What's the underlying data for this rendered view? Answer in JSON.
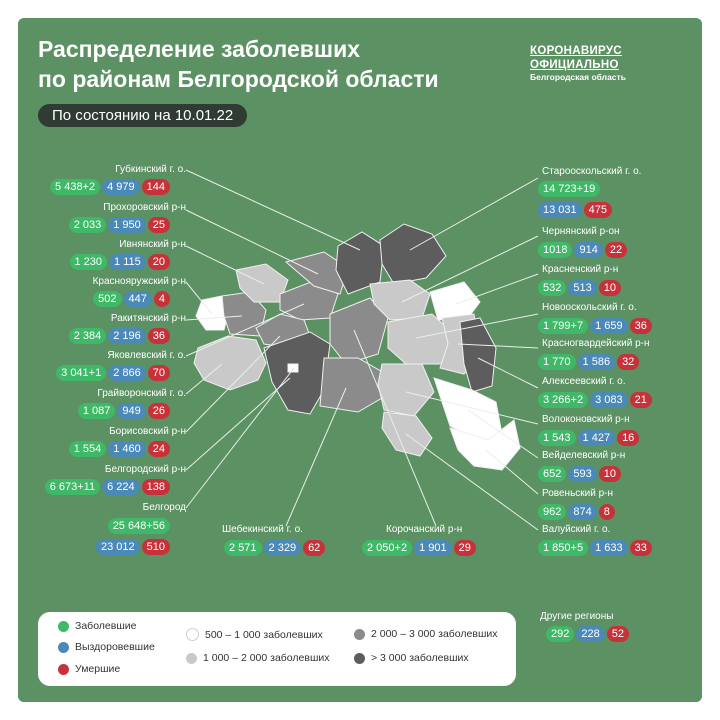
{
  "header": {
    "title_line1": "Распределение заболевших",
    "title_line2": "по районам Белгородской области",
    "date": "По состоянию на 10.01.22",
    "brand_line1": "КОРОНАВИРУС",
    "brand_line2": "ОФИЦИАЛЬНО",
    "brand_line3": "Белгородская область"
  },
  "left_districts": [
    {
      "name": "Губкинский г. о.",
      "sick": "5 438+2",
      "recovered": "4 979",
      "dead": "144"
    },
    {
      "name": "Прохоровский р-н",
      "sick": "2 033",
      "recovered": "1 950",
      "dead": "25"
    },
    {
      "name": "Ивнянский р-н",
      "sick": "1 230",
      "recovered": "1 115",
      "dead": "20"
    },
    {
      "name": "Краснояружский р-н",
      "sick": "502",
      "recovered": "447",
      "dead": "4"
    },
    {
      "name": "Ракитянский р-н",
      "sick": "2 384",
      "recovered": "2 196",
      "dead": "36"
    },
    {
      "name": "Яковлевский г. о.",
      "sick": "3 041+1",
      "recovered": "2 866",
      "dead": "70"
    },
    {
      "name": "Грайворонский г. о.",
      "sick": "1 087",
      "recovered": "949",
      "dead": "26"
    },
    {
      "name": "Борисовский р-н",
      "sick": "1 554",
      "recovered": "1 460",
      "dead": "24"
    },
    {
      "name": "Белгородский р-н",
      "sick": "6 673+11",
      "recovered": "6 224",
      "dead": "138"
    }
  ],
  "belgorod": {
    "name": "Белгород",
    "sick": "25 648+56",
    "recovered": "23 012",
    "dead": "510"
  },
  "bottom_districts": [
    {
      "name": "Шебекинский г. о.",
      "sick": "2 571",
      "recovered": "2 329",
      "dead": "62"
    },
    {
      "name": "Корочанский р-н",
      "sick": "2 050+2",
      "recovered": "1 901",
      "dead": "29"
    }
  ],
  "right_districts": [
    {
      "name": "Старооскольский г. о.",
      "sick": "14 723+19",
      "recovered": "13 031",
      "dead": "475"
    },
    {
      "name": "Чернянский р-он",
      "sick": "1018",
      "recovered": "914",
      "dead": "22"
    },
    {
      "name": "Красненский р-н",
      "sick": "532",
      "recovered": "513",
      "dead": "10"
    },
    {
      "name": "Новооскольский г. о.",
      "sick": "1 799+7",
      "recovered": "1 659",
      "dead": "36"
    },
    {
      "name": "Красногвардейский р-н",
      "sick": "1 770",
      "recovered": "1 586",
      "dead": "32"
    },
    {
      "name": "Алексеевский г. о.",
      "sick": "3 266+2",
      "recovered": "3 083",
      "dead": "21"
    },
    {
      "name": "Волоконовский р-н",
      "sick": "1 543",
      "recovered": "1 427",
      "dead": "16"
    },
    {
      "name": "Вейделевский р-н",
      "sick": "652",
      "recovered": "593",
      "dead": "10"
    },
    {
      "name": "Ровеньский р-н",
      "sick": "962",
      "recovered": "874",
      "dead": "8"
    },
    {
      "name": "Валуйский г. о.",
      "sick": "1 850+5",
      "recovered": "1 633",
      "dead": "33"
    }
  ],
  "other_regions": {
    "name": "Другие регионы",
    "sick": "292",
    "recovered": "228",
    "dead": "52"
  },
  "legend": {
    "sick": "Заболевшие",
    "recovered": "Выздоровевшие",
    "dead": "Умершие",
    "range1": "500 – 1 000 заболевших",
    "range2": "1 000 – 2 000 заболевших",
    "range3": "2 000 – 3 000 заболевших",
    "range4": "> 3 000 заболевших"
  },
  "colors": {
    "background": "#5b9163",
    "sick": "#3fb868",
    "recovered": "#4a89b8",
    "dead": "#c7313a",
    "range1": "#ffffff",
    "range2": "#c9c9c9",
    "range3": "#8b8b8b",
    "range4": "#5d5d5d"
  }
}
